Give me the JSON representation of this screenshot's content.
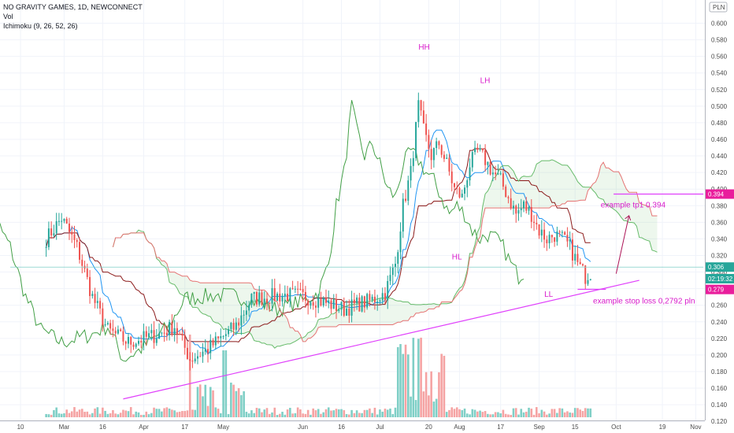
{
  "chart_data": {
    "type": "candlestick",
    "symbol_line": "NO GRAVITY GAMES, 1D, NEWCONNECT",
    "indicator_lines": [
      "Vol",
      "Ichimoku (9, 26, 52, 26)"
    ],
    "currency": "PLN",
    "y_range": [
      0.1,
      0.6
    ],
    "y_ticks": [
      "0.600",
      "0.580",
      "0.560",
      "0.540",
      "0.520",
      "0.500",
      "0.480",
      "0.460",
      "0.440",
      "0.420",
      "0.400",
      "0.380",
      "0.360",
      "0.340",
      "0.320",
      "0.300",
      "0.280",
      "0.260",
      "0.240",
      "0.220",
      "0.200",
      "0.180",
      "0.160",
      "0.140",
      "0.120"
    ],
    "x_ticks": [
      {
        "label": "10",
        "day": 4
      },
      {
        "label": "Mar",
        "day": 21
      },
      {
        "label": "16",
        "day": 36
      },
      {
        "label": "Apr",
        "day": 52
      },
      {
        "label": "17",
        "day": 68
      },
      {
        "label": "May",
        "day": 83
      },
      {
        "label": "Jun",
        "day": 114
      },
      {
        "label": "16",
        "day": 129
      },
      {
        "label": "Jul",
        "day": 144
      },
      {
        "label": "20",
        "day": 163
      },
      {
        "label": "Aug",
        "day": 175
      },
      {
        "label": "17",
        "day": 191
      },
      {
        "label": "Sep",
        "day": 206
      },
      {
        "label": "15",
        "day": 220
      },
      {
        "label": "Oct",
        "day": 236
      },
      {
        "label": "19",
        "day": 254
      },
      {
        "label": "Nov",
        "day": 267
      }
    ],
    "price_tags": [
      {
        "label": "0.394",
        "value": 0.394,
        "color": "#e91e9c"
      },
      {
        "label": "0.306",
        "value": 0.306,
        "color": "#26a69a"
      },
      {
        "label": "02:19:32",
        "value": 0.292,
        "color": "#26a69a"
      },
      {
        "label": "0.279",
        "value": 0.279,
        "color": "#e91e9c"
      }
    ],
    "annotations": [
      {
        "text": "HH",
        "day": 159,
        "value": 0.568
      },
      {
        "text": "LH",
        "day": 183,
        "value": 0.528
      },
      {
        "text": "HL",
        "day": 172,
        "value": 0.315
      },
      {
        "text": "LL",
        "day": 208,
        "value": 0.27
      },
      {
        "text": "example tp1 0.394",
        "day": 230,
        "value": 0.378
      },
      {
        "text": "example stop loss 0,2792 pln",
        "day": 227,
        "value": 0.262
      }
    ],
    "trendline": {
      "from": {
        "day": 44,
        "value": 0.147
      },
      "to": {
        "day": 245,
        "value": 0.29
      }
    },
    "levels": [
      {
        "name": "tp1",
        "value": 0.394,
        "from_day": 235,
        "to_day": 270
      },
      {
        "name": "stop-loss",
        "value": 0.2792,
        "from_day": 221,
        "to_day": 232
      },
      {
        "name": "last",
        "value": 0.306,
        "from_day": 0,
        "to_day": 270
      }
    ],
    "up_arrow": {
      "from": {
        "day": 236,
        "value": 0.298
      },
      "to": {
        "day": 241,
        "value": 0.368
      }
    },
    "candles_anchor": [
      [
        14,
        0.34
      ],
      [
        20,
        0.365
      ],
      [
        26,
        0.33
      ],
      [
        32,
        0.27
      ],
      [
        38,
        0.23
      ],
      [
        46,
        0.215
      ],
      [
        52,
        0.22
      ],
      [
        58,
        0.225
      ],
      [
        64,
        0.235
      ],
      [
        70,
        0.195
      ],
      [
        76,
        0.205
      ],
      [
        82,
        0.22
      ],
      [
        88,
        0.235
      ],
      [
        94,
        0.268
      ],
      [
        100,
        0.27
      ],
      [
        106,
        0.272
      ],
      [
        112,
        0.272
      ],
      [
        118,
        0.268
      ],
      [
        124,
        0.262
      ],
      [
        130,
        0.255
      ],
      [
        136,
        0.262
      ],
      [
        140,
        0.265
      ],
      [
        146,
        0.275
      ],
      [
        150,
        0.31
      ],
      [
        153,
        0.38
      ],
      [
        156,
        0.42
      ],
      [
        159,
        0.5
      ],
      [
        161,
        0.47
      ],
      [
        164,
        0.44
      ],
      [
        167,
        0.455
      ],
      [
        170,
        0.43
      ],
      [
        173,
        0.4
      ],
      [
        176,
        0.39
      ],
      [
        179,
        0.43
      ],
      [
        182,
        0.445
      ],
      [
        185,
        0.435
      ],
      [
        188,
        0.42
      ],
      [
        191,
        0.41
      ],
      [
        194,
        0.39
      ],
      [
        197,
        0.37
      ],
      [
        200,
        0.38
      ],
      [
        203,
        0.37
      ],
      [
        206,
        0.35
      ],
      [
        209,
        0.34
      ],
      [
        212,
        0.345
      ],
      [
        215,
        0.34
      ],
      [
        218,
        0.33
      ],
      [
        221,
        0.31
      ],
      [
        224,
        0.295
      ],
      [
        226,
        0.3
      ]
    ]
  }
}
